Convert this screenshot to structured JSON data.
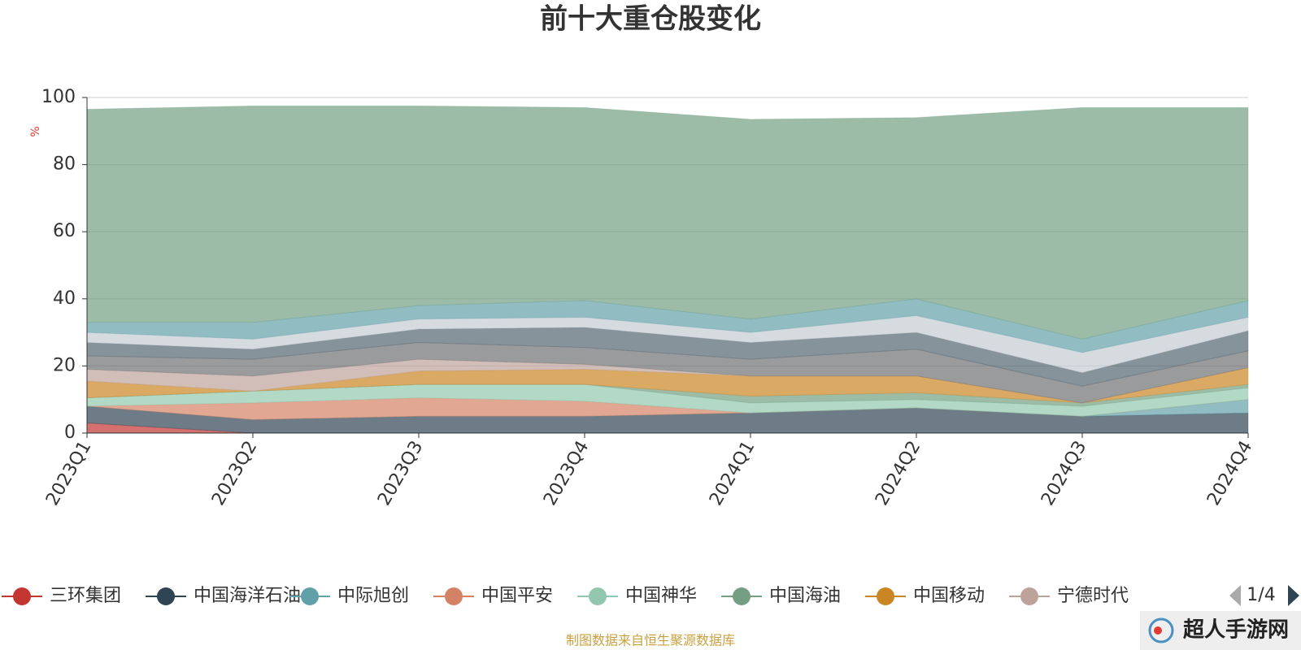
{
  "chart_data": {
    "type": "stacked_area",
    "title": "前十大重仓股变化",
    "y_axis_label": "%",
    "categories": [
      "2023Q1",
      "2023Q2",
      "2023Q3",
      "2023Q4",
      "2024Q1",
      "2024Q2",
      "2024Q3",
      "2024Q4"
    ],
    "ylim": [
      0,
      100
    ],
    "yticks": [
      0,
      20,
      40,
      60,
      80,
      100
    ],
    "grid": true,
    "series": [
      {
        "name": "三环集团",
        "color": "#c23531",
        "values": [
          3,
          0,
          0,
          0,
          0,
          0,
          0,
          0
        ]
      },
      {
        "name": "中国海洋石油",
        "color": "#2f4554",
        "values": [
          5,
          4,
          5,
          5,
          6,
          7.5,
          5,
          6
        ]
      },
      {
        "name": "中际旭创",
        "color": "#61a0a8",
        "values": [
          0,
          0,
          0,
          0,
          0,
          0,
          0,
          4
        ]
      },
      {
        "name": "中国平安",
        "color": "#d48265",
        "values": [
          0,
          5,
          5.5,
          4.5,
          0,
          0,
          0,
          0
        ]
      },
      {
        "name": "中国神华",
        "color": "#91c7ae",
        "values": [
          2.5,
          3.5,
          4,
          5,
          3,
          2.5,
          3,
          3.5
        ]
      },
      {
        "name": "中国海油",
        "color": "#749f83",
        "values": [
          0,
          0,
          0,
          0,
          2,
          2,
          1,
          1
        ]
      },
      {
        "name": "中国移动",
        "color": "#ca8622",
        "values": [
          5,
          0,
          4,
          4.5,
          6,
          5,
          0,
          5
        ]
      },
      {
        "name": "宁德时代",
        "color": "#bda29a",
        "values": [
          3.5,
          4.5,
          3.5,
          1.5,
          0,
          0,
          0,
          0
        ]
      },
      {
        "color": "#6e7074",
        "values": [
          4,
          5,
          5,
          5,
          5,
          8,
          5,
          5
        ]
      },
      {
        "color": "#546570",
        "values": [
          4,
          3,
          4,
          6,
          5,
          5,
          4,
          6
        ]
      },
      {
        "color": "#c4ccd3",
        "values": [
          3,
          3,
          3,
          3,
          3,
          5,
          6,
          4
        ]
      },
      {
        "color": "#61a0a8",
        "values": [
          3,
          5,
          4,
          5,
          4,
          5,
          4,
          5
        ]
      },
      {
        "color": "#749f83",
        "values": [
          63.5,
          64.5,
          59.5,
          57.5,
          59.5,
          54,
          69,
          57.5
        ]
      }
    ],
    "legend_page": "1/4",
    "source_note": "制图数据来自恒生聚源数据库"
  },
  "watermark": "超人手游网"
}
